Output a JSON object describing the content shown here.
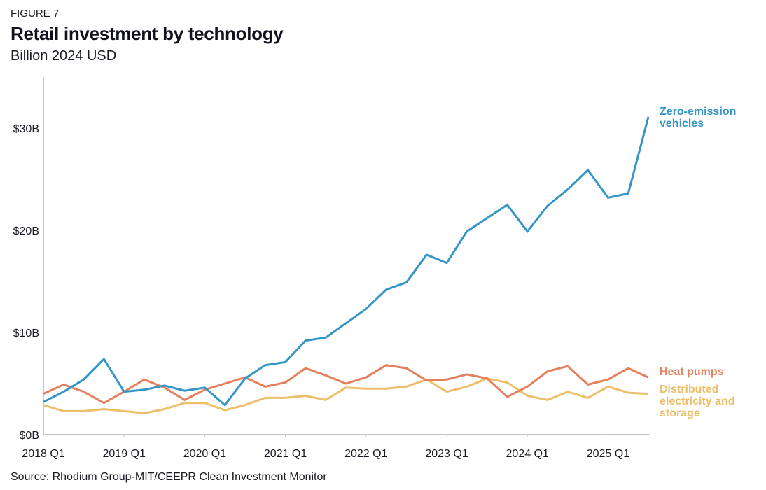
{
  "header": {
    "figure_label": "FIGURE 7",
    "title": "Retail investment by technology",
    "subtitle": "Billion 2024 USD"
  },
  "footer": {
    "source": "Source: Rhodium Group-MIT/CEEPR Clean Investment Monitor"
  },
  "chart_data": {
    "type": "line",
    "title": "Retail investment by technology",
    "subtitle": "Billion 2024 USD",
    "xlabel": "",
    "ylabel": "",
    "ylim": [
      0,
      35
    ],
    "grid": false,
    "legend_placement": "right (direct labels at line ends)",
    "y_ticks": [
      {
        "value": 0,
        "label": "$0B"
      },
      {
        "value": 10,
        "label": "$10B"
      },
      {
        "value": 20,
        "label": "$20B"
      },
      {
        "value": 30,
        "label": "$30B"
      }
    ],
    "x_ticks": [
      {
        "index": 0,
        "label": "2018 Q1"
      },
      {
        "index": 4,
        "label": "2019 Q1"
      },
      {
        "index": 8,
        "label": "2020 Q1"
      },
      {
        "index": 12,
        "label": "2021 Q1"
      },
      {
        "index": 16,
        "label": "2022 Q1"
      },
      {
        "index": 20,
        "label": "2023 Q1"
      },
      {
        "index": 24,
        "label": "2024 Q1"
      },
      {
        "index": 28,
        "label": "2025 Q1"
      }
    ],
    "x": [
      "2018 Q1",
      "2018 Q2",
      "2018 Q3",
      "2018 Q4",
      "2019 Q1",
      "2019 Q2",
      "2019 Q3",
      "2019 Q4",
      "2020 Q1",
      "2020 Q2",
      "2020 Q3",
      "2020 Q4",
      "2021 Q1",
      "2021 Q2",
      "2021 Q3",
      "2021 Q4",
      "2022 Q1",
      "2022 Q2",
      "2022 Q3",
      "2022 Q4",
      "2023 Q1",
      "2023 Q2",
      "2023 Q3",
      "2023 Q4",
      "2024 Q1",
      "2024 Q2",
      "2024 Q3",
      "2024 Q4",
      "2025 Q1",
      "2025 Q2",
      "2025 Q3"
    ],
    "series": [
      {
        "name": "Zero-emission vehicles",
        "label_lines": [
          "Zero-emission",
          "vehicles"
        ],
        "color": "#3495c6",
        "values": [
          3.2,
          4.2,
          5.4,
          7.4,
          4.2,
          4.4,
          4.8,
          4.3,
          4.6,
          2.9,
          5.5,
          6.8,
          7.1,
          9.2,
          9.5,
          10.9,
          12.3,
          14.2,
          14.9,
          17.6,
          16.8,
          19.9,
          21.2,
          22.5,
          19.9,
          22.4,
          24.0,
          25.9,
          23.2,
          23.6,
          31.1
        ]
      },
      {
        "name": "Heat pumps",
        "label_lines": [
          "Heat pumps"
        ],
        "color": "#e4805e",
        "values": [
          4.0,
          4.9,
          4.2,
          3.1,
          4.2,
          5.4,
          4.6,
          3.4,
          4.4,
          5.0,
          5.6,
          4.7,
          5.1,
          6.5,
          5.8,
          5.0,
          5.6,
          6.8,
          6.5,
          5.3,
          5.4,
          5.9,
          5.5,
          3.7,
          4.7,
          6.2,
          6.7,
          4.9,
          5.4,
          6.5,
          5.6
        ]
      },
      {
        "name": "Distributed electricity and storage",
        "label_lines": [
          "Distributed",
          "electricity and",
          "storage"
        ],
        "color": "#edbf6a",
        "values": [
          2.9,
          2.3,
          2.3,
          2.5,
          2.3,
          2.1,
          2.5,
          3.1,
          3.1,
          2.4,
          2.9,
          3.6,
          3.6,
          3.8,
          3.4,
          4.6,
          4.5,
          4.5,
          4.7,
          5.4,
          4.2,
          4.7,
          5.5,
          5.1,
          3.8,
          3.4,
          4.2,
          3.6,
          4.7,
          4.1,
          4.0
        ]
      }
    ]
  }
}
